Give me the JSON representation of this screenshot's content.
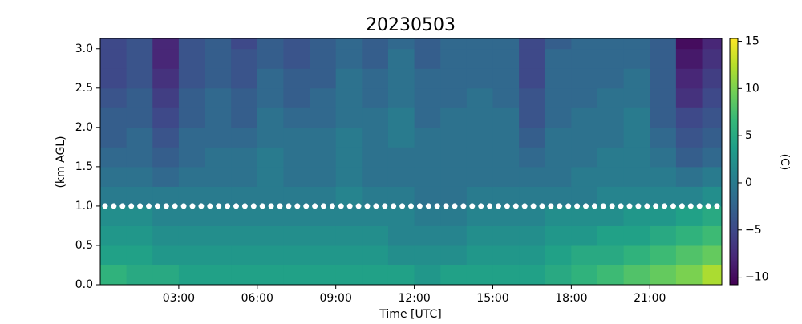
{
  "chart_data": {
    "type": "heatmap",
    "title": "20230503",
    "x_label": "Time [UTC]",
    "y_label": "(km AGL)",
    "colorbar_label": "(C)",
    "x_bins": [
      0,
      1,
      2,
      3,
      4,
      5,
      6,
      7,
      8,
      9,
      10,
      11,
      12,
      13,
      14,
      15,
      16,
      17,
      18,
      19,
      20,
      21,
      22,
      23,
      23.75
    ],
    "y_bins": [
      0,
      0.25,
      0.5,
      0.75,
      1.0,
      1.25,
      1.5,
      1.75,
      2.0,
      2.25,
      2.5,
      2.75,
      3.0,
      3.13
    ],
    "values": [
      [
        6,
        5,
        5,
        4,
        4,
        4,
        4,
        4,
        4,
        4,
        4,
        4,
        3,
        4,
        4,
        4,
        4,
        5,
        6,
        7,
        8,
        9,
        10,
        12
      ],
      [
        4,
        4,
        3,
        3,
        3,
        3,
        3,
        3,
        3,
        3,
        3,
        2,
        2,
        2,
        3,
        3,
        3,
        4,
        5,
        5,
        6,
        7,
        8,
        9
      ],
      [
        3,
        3,
        2,
        2,
        2,
        2,
        2,
        2,
        2,
        2,
        2,
        1,
        1,
        1,
        2,
        2,
        2,
        3,
        3,
        4,
        4,
        5,
        6,
        7
      ],
      [
        2,
        2,
        1,
        1,
        1,
        1,
        1,
        1,
        1,
        1,
        1,
        1,
        0,
        0,
        1,
        1,
        1,
        2,
        2,
        2,
        3,
        3,
        4,
        5
      ],
      [
        0,
        0,
        0,
        0,
        0,
        0,
        0,
        0,
        0,
        1,
        0,
        0,
        -1,
        -1,
        0,
        0,
        0,
        0,
        0,
        1,
        1,
        1,
        1,
        2
      ],
      [
        -1,
        -1,
        -2,
        -1,
        -1,
        -1,
        0,
        -1,
        -1,
        0,
        -1,
        -1,
        -1,
        -1,
        -1,
        -1,
        -1,
        -1,
        0,
        0,
        0,
        0,
        -1,
        0
      ],
      [
        -2,
        -2,
        -3,
        -2,
        -1,
        -1,
        0,
        -1,
        -1,
        0,
        -1,
        -1,
        -1,
        -1,
        -1,
        -1,
        -2,
        -1,
        -1,
        0,
        0,
        -1,
        -3,
        -2
      ],
      [
        -3,
        -2,
        -4,
        -2,
        -2,
        -2,
        -1,
        -1,
        -1,
        0,
        -1,
        0,
        -1,
        -1,
        -1,
        -1,
        -3,
        -1,
        -1,
        -1,
        0,
        -2,
        -4,
        -3
      ],
      [
        -3,
        -3,
        -5,
        -3,
        -2,
        -3,
        -1,
        -2,
        -2,
        -1,
        -1,
        0,
        -2,
        -1,
        -1,
        -1,
        -4,
        -2,
        -1,
        -1,
        0,
        -3,
        -5,
        -4
      ],
      [
        -4,
        -3,
        -6,
        -3,
        -2,
        -3,
        -2,
        -3,
        -2,
        -1,
        -2,
        -1,
        -2,
        -2,
        -1,
        -2,
        -4,
        -2,
        -2,
        -1,
        -1,
        -3,
        -7,
        -5
      ],
      [
        -5,
        -4,
        -7,
        -4,
        -3,
        -4,
        -2,
        -3,
        -3,
        -1,
        -2,
        -1,
        -2,
        -2,
        -2,
        -2,
        -5,
        -2,
        -2,
        -2,
        -1,
        -3,
        -8,
        -6
      ],
      [
        -5,
        -4,
        -8,
        -4,
        -3,
        -4,
        -3,
        -4,
        -3,
        -2,
        -3,
        -1,
        -3,
        -2,
        -2,
        -2,
        -5,
        -2,
        -2,
        -2,
        -2,
        -3,
        -9,
        -7
      ],
      [
        -5,
        -4,
        -8,
        -4,
        -3,
        -5,
        -3,
        -4,
        -3,
        -2,
        -3,
        -2,
        -3,
        -2,
        -2,
        -2,
        -5,
        -3,
        -2,
        -2,
        -2,
        -3,
        -10,
        -8
      ]
    ],
    "xlim": [
      0,
      23.75
    ],
    "ylim": [
      0,
      3.13
    ],
    "clim": [
      -10.8,
      15.3
    ],
    "xticks": [
      {
        "value": 3,
        "label": "03:00"
      },
      {
        "value": 6,
        "label": "06:00"
      },
      {
        "value": 9,
        "label": "09:00"
      },
      {
        "value": 12,
        "label": "12:00"
      },
      {
        "value": 15,
        "label": "15:00"
      },
      {
        "value": 18,
        "label": "18:00"
      },
      {
        "value": 21,
        "label": "21:00"
      }
    ],
    "yticks": [
      {
        "value": 0,
        "label": "0.0"
      },
      {
        "value": 0.5,
        "label": "0.5"
      },
      {
        "value": 1,
        "label": "1.0"
      },
      {
        "value": 1.5,
        "label": "1.5"
      },
      {
        "value": 2,
        "label": "2.0"
      },
      {
        "value": 2.5,
        "label": "2.5"
      },
      {
        "value": 3,
        "label": "3.0"
      }
    ],
    "cticks": [
      {
        "value": -10,
        "label": "−10"
      },
      {
        "value": -5,
        "label": "−5"
      },
      0,
      5,
      10,
      15
    ],
    "hline": 1.0,
    "hline_color": "#ffffff",
    "colormap": [
      "#440154",
      "#482878",
      "#3e4989",
      "#31688e",
      "#26828e",
      "#1f9e89",
      "#35b779",
      "#6ece58",
      "#b5de2b",
      "#fde725"
    ]
  }
}
